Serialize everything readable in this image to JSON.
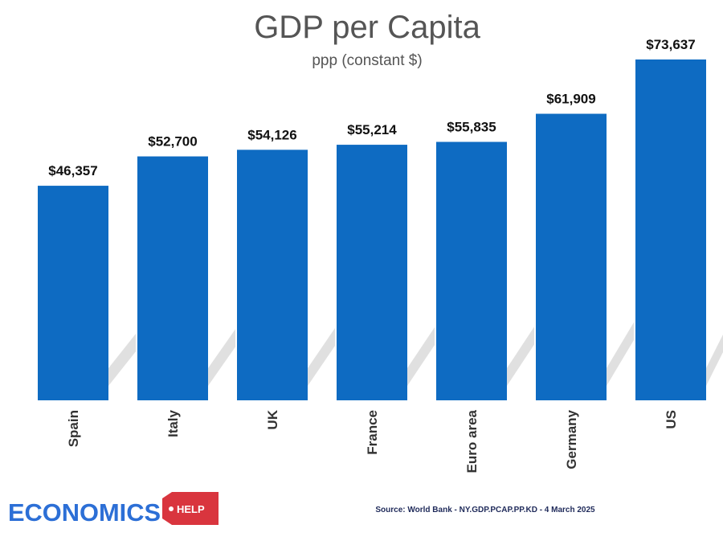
{
  "chart_data": {
    "type": "bar",
    "title": "GDP per Capita",
    "subtitle": "ppp (constant $)",
    "categories": [
      "Spain",
      "Italy",
      "UK",
      "France",
      "Euro area",
      "Germany",
      "US"
    ],
    "values": [
      46357,
      52700,
      54126,
      55214,
      55835,
      61909,
      73637
    ],
    "value_labels": [
      "$46,357",
      "$52,700",
      "$54,126",
      "$55,214",
      "$55,835",
      "$61,909",
      "$73,637"
    ],
    "xlabel": "",
    "ylabel": "",
    "ylim": [
      0,
      73637
    ],
    "grid": false,
    "legend": "none",
    "colors": {
      "bar": "#0e6bc2",
      "shadow": "#d6d6d6"
    }
  },
  "source": "Source: World Bank - NY.GDP.PCAP.PP.KD - 4 March 2025",
  "logo": {
    "word": "ECONOMICS",
    "tag": "HELP",
    "colors": {
      "word": "#2c6fd6",
      "tag": "#d9353e"
    }
  }
}
